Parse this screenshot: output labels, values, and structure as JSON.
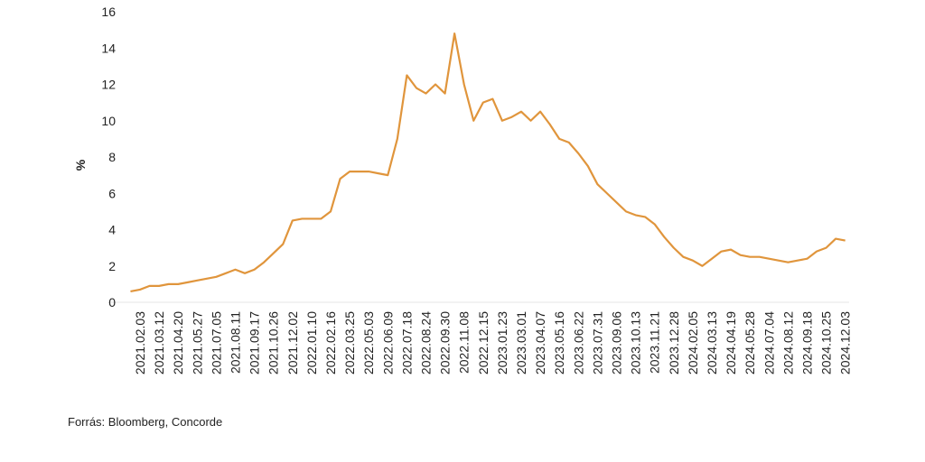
{
  "chart_data": {
    "type": "line",
    "y_label": "%",
    "source": "Forrás: Bloomberg, Concorde",
    "categories": [
      null,
      "2021.02.03",
      null,
      "2021.03.12",
      null,
      "2021.04.20",
      null,
      "2021.05.27",
      null,
      "2021.07.05",
      null,
      "2021.08.11",
      null,
      "2021.09.17",
      null,
      "2021.10.26",
      null,
      "2021.12.02",
      null,
      "2022.01.10",
      null,
      "2022.02.16",
      null,
      "2022.03.25",
      null,
      "2022.05.03",
      null,
      "2022.06.09",
      null,
      "2022.07.18",
      null,
      "2022.08.24",
      null,
      "2022.09.30",
      null,
      "2022.11.08",
      null,
      "2022.12.15",
      null,
      "2023.01.23",
      null,
      "2023.03.01",
      null,
      "2023.04.07",
      null,
      "2023.05.16",
      null,
      "2023.06.22",
      null,
      "2023.07.31",
      null,
      "2023.09.06",
      null,
      "2023.10.13",
      null,
      "2023.11.21",
      null,
      "2023.12.28",
      null,
      "2024.02.05",
      null,
      "2024.03.13",
      null,
      "2024.04.19",
      null,
      "2024.05.28",
      null,
      "2024.07.04",
      null,
      "2024.08.12",
      null,
      "2024.09.18",
      null,
      "2024.10.25",
      null,
      "2024.12.03"
    ],
    "series": [
      {
        "color": "#e0953c",
        "values": [
          0.6,
          0.7,
          0.9,
          0.9,
          1.0,
          1.0,
          1.1,
          1.2,
          1.3,
          1.4,
          1.6,
          1.8,
          1.6,
          1.8,
          2.2,
          2.7,
          3.2,
          4.5,
          4.6,
          4.6,
          4.6,
          5.0,
          6.8,
          7.2,
          7.2,
          7.2,
          7.1,
          7.0,
          9.0,
          12.5,
          11.8,
          11.5,
          12.0,
          11.5,
          14.8,
          12.0,
          10.0,
          11.0,
          11.2,
          10.0,
          10.2,
          10.5,
          10.0,
          10.5,
          9.8,
          9.0,
          8.8,
          8.2,
          7.5,
          6.5,
          6.0,
          5.5,
          5.0,
          4.8,
          4.7,
          4.3,
          3.6,
          3.0,
          2.5,
          2.3,
          2.0,
          2.4,
          2.8,
          2.9,
          2.6,
          2.5,
          2.5,
          2.4,
          2.3,
          2.2,
          2.3,
          2.4,
          2.8,
          3.0,
          3.5,
          3.4
        ]
      }
    ],
    "ylim": [
      0,
      16
    ],
    "yticks": [
      0,
      2,
      4,
      6,
      8,
      10,
      12,
      14,
      16
    ]
  }
}
